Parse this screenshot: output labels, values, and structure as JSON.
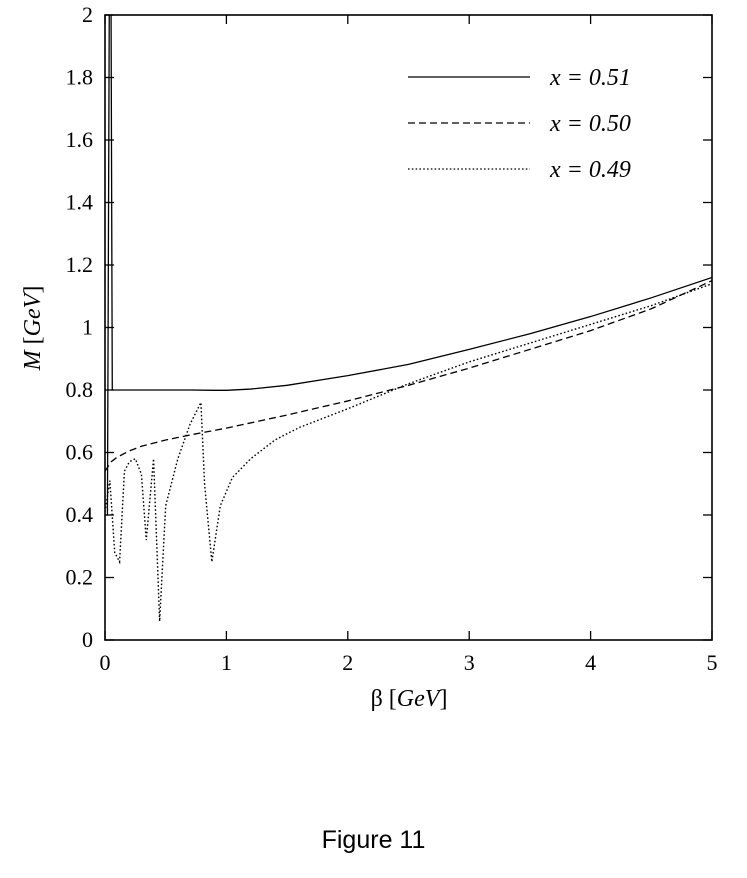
{
  "caption": "Figure 11",
  "chart_data": {
    "type": "line",
    "title": "",
    "xlabel": {
      "symbol": "β",
      "unit": "GeV"
    },
    "ylabel": {
      "symbol": "M",
      "unit": "GeV"
    },
    "xlim": [
      0,
      5
    ],
    "ylim": [
      0,
      2
    ],
    "xticks": [
      "0",
      "1",
      "2",
      "3",
      "4",
      "5"
    ],
    "yticks": [
      "0",
      "0.2",
      "0.4",
      "0.6",
      "0.8",
      "1",
      "1.2",
      "1.4",
      "1.6",
      "1.8",
      "2"
    ],
    "grid": false,
    "legend_position": "top-right",
    "series": [
      {
        "name": "x = 0.51",
        "style": "solid",
        "x": [
          0.0,
          0.02,
          0.035,
          0.05,
          0.06,
          0.07,
          0.1,
          0.3,
          0.5,
          0.7,
          0.9,
          1.0,
          1.2,
          1.5,
          2.0,
          2.5,
          3.0,
          3.5,
          4.0,
          4.5,
          5.0
        ],
        "y": [
          0.4,
          0.4,
          2.0,
          2.0,
          0.8,
          0.8,
          0.8,
          0.8,
          0.8,
          0.8,
          0.799,
          0.799,
          0.803,
          0.815,
          0.846,
          0.882,
          0.93,
          0.98,
          1.035,
          1.095,
          1.16
        ]
      },
      {
        "name": "x = 0.50",
        "style": "dashed",
        "x": [
          0.0,
          0.05,
          0.1,
          0.2,
          0.3,
          0.5,
          0.7,
          1.0,
          1.5,
          2.0,
          2.5,
          3.0,
          3.5,
          4.0,
          4.5,
          5.0
        ],
        "y": [
          0.54,
          0.57,
          0.585,
          0.605,
          0.62,
          0.64,
          0.656,
          0.678,
          0.72,
          0.765,
          0.815,
          0.87,
          0.93,
          0.99,
          1.06,
          1.15
        ]
      },
      {
        "name": "x = 0.49",
        "style": "dotted",
        "x": [
          0.0,
          0.04,
          0.08,
          0.12,
          0.16,
          0.2,
          0.25,
          0.3,
          0.34,
          0.37,
          0.4,
          0.45,
          0.5,
          0.6,
          0.7,
          0.79,
          0.82,
          0.88,
          0.95,
          1.05,
          1.2,
          1.4,
          1.6,
          1.8,
          2.0,
          2.5,
          3.0,
          3.5,
          4.0,
          4.5,
          5.0
        ],
        "y": [
          0.41,
          0.51,
          0.28,
          0.25,
          0.54,
          0.57,
          0.58,
          0.53,
          0.32,
          0.45,
          0.58,
          0.06,
          0.43,
          0.58,
          0.69,
          0.76,
          0.5,
          0.25,
          0.43,
          0.52,
          0.58,
          0.64,
          0.68,
          0.71,
          0.74,
          0.82,
          0.89,
          0.95,
          1.01,
          1.07,
          1.14
        ]
      }
    ]
  }
}
